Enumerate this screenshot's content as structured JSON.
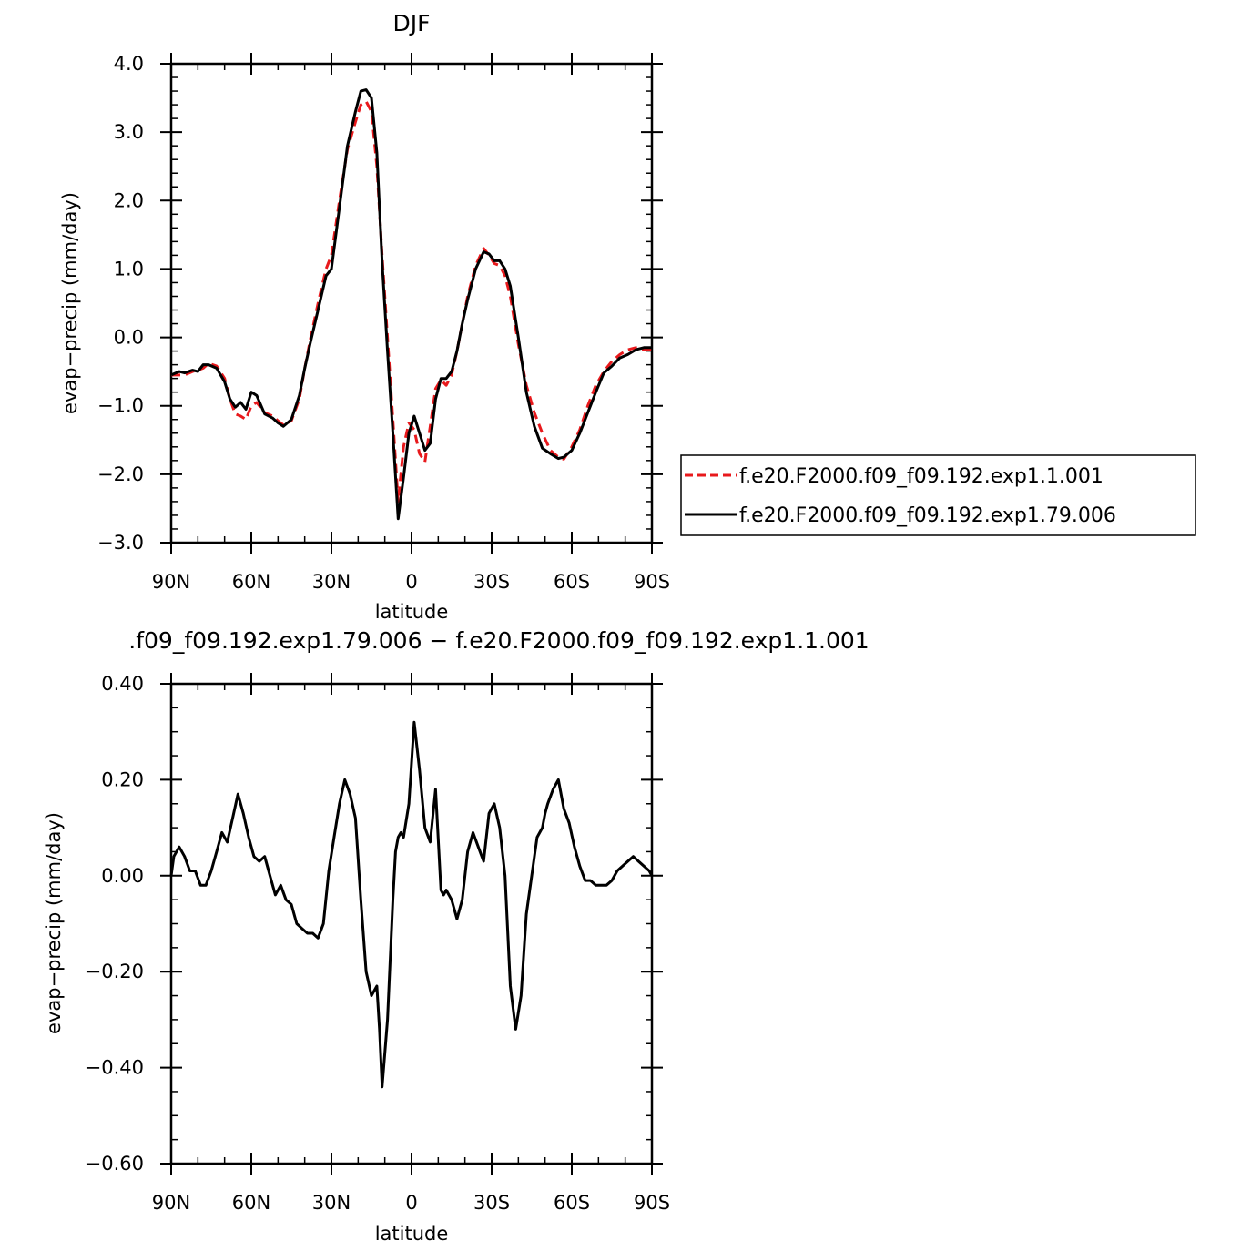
{
  "chart_data": [
    {
      "type": "line",
      "title": "DJF",
      "xlabel": "latitude",
      "ylabel": "evap−precip (mm/day)",
      "xlim": [
        90,
        -90
      ],
      "ylim": [
        -3.0,
        4.0
      ],
      "x_ticks": [
        90,
        60,
        30,
        0,
        -30,
        -60,
        -90
      ],
      "x_tick_labels": [
        "90N",
        "60N",
        "30N",
        "0",
        "30S",
        "60S",
        "90S"
      ],
      "y_ticks": [
        4.0,
        3.0,
        2.0,
        1.0,
        0.0,
        -1.0,
        -2.0,
        -3.0
      ],
      "y_tick_labels": [
        "4.0",
        "3.0",
        "2.0",
        "1.0",
        "0.0",
        "−1.0",
        "−2.0",
        "−3.0"
      ],
      "legend_position": "right",
      "series": [
        {
          "name": "f.e20.F2000.f09_f09.192.exp1.1.001",
          "color": "#e8191c",
          "style": "dashed",
          "x": [
            90,
            87,
            85,
            82,
            80,
            78,
            76,
            73,
            70,
            68,
            66,
            64,
            62,
            60,
            58,
            55,
            52,
            50,
            48,
            45,
            42,
            40,
            38,
            35,
            32,
            30,
            27,
            24,
            21,
            19,
            17,
            15,
            13,
            11,
            9,
            7,
            5,
            3,
            1,
            -1,
            -3,
            -5,
            -7,
            -9,
            -11,
            -13,
            -15,
            -17,
            -19,
            -21,
            -24,
            -27,
            -29,
            -31,
            -33,
            -35,
            -37,
            -40,
            -43,
            -46,
            -49,
            -52,
            -55,
            -57,
            -60,
            -63,
            -66,
            -69,
            -72,
            -75,
            -78,
            -81,
            -84,
            -87,
            -90
          ],
          "values": [
            -0.55,
            -0.55,
            -0.55,
            -0.5,
            -0.48,
            -0.45,
            -0.38,
            -0.42,
            -0.6,
            -0.9,
            -1.12,
            -1.15,
            -1.2,
            -1.0,
            -0.95,
            -1.1,
            -1.15,
            -1.22,
            -1.28,
            -1.22,
            -0.9,
            -0.45,
            -0.05,
            0.5,
            1.0,
            1.2,
            2.0,
            2.75,
            3.15,
            3.4,
            3.45,
            3.3,
            2.5,
            1.2,
            0.0,
            -1.2,
            -2.4,
            -1.6,
            -1.25,
            -1.35,
            -1.7,
            -1.82,
            -1.3,
            -0.75,
            -0.62,
            -0.7,
            -0.55,
            -0.2,
            0.2,
            0.6,
            1.05,
            1.3,
            1.2,
            1.08,
            1.05,
            0.9,
            0.6,
            -0.1,
            -0.7,
            -1.1,
            -1.4,
            -1.65,
            -1.75,
            -1.78,
            -1.6,
            -1.35,
            -1.0,
            -0.7,
            -0.5,
            -0.35,
            -0.25,
            -0.18,
            -0.15,
            -0.18,
            -0.18
          ]
        },
        {
          "name": "f.e20.F2000.f09_f09.192.exp1.79.006",
          "color": "#000000",
          "style": "solid",
          "x": [
            90,
            87,
            85,
            82,
            80,
            78,
            76,
            73,
            70,
            68,
            66,
            64,
            62,
            60,
            58,
            55,
            52,
            50,
            48,
            45,
            42,
            40,
            38,
            35,
            32,
            30,
            27,
            24,
            21,
            19,
            17,
            15,
            13,
            11,
            9,
            7,
            5,
            3,
            1,
            -1,
            -3,
            -5,
            -7,
            -9,
            -11,
            -13,
            -15,
            -17,
            -19,
            -21,
            -24,
            -27,
            -29,
            -31,
            -33,
            -35,
            -37,
            -40,
            -43,
            -46,
            -49,
            -52,
            -55,
            -57,
            -60,
            -63,
            -66,
            -69,
            -72,
            -75,
            -78,
            -81,
            -84,
            -87,
            -90
          ],
          "values": [
            -0.55,
            -0.5,
            -0.52,
            -0.48,
            -0.5,
            -0.4,
            -0.4,
            -0.45,
            -0.65,
            -0.9,
            -1.02,
            -0.95,
            -1.05,
            -0.8,
            -0.85,
            -1.12,
            -1.18,
            -1.25,
            -1.3,
            -1.2,
            -0.85,
            -0.45,
            -0.1,
            0.4,
            0.9,
            1.0,
            1.9,
            2.8,
            3.3,
            3.6,
            3.62,
            3.5,
            2.7,
            1.1,
            -0.2,
            -1.4,
            -2.65,
            -2.05,
            -1.4,
            -1.15,
            -1.4,
            -1.65,
            -1.55,
            -0.9,
            -0.6,
            -0.6,
            -0.5,
            -0.2,
            0.2,
            0.55,
            1.0,
            1.25,
            1.22,
            1.12,
            1.12,
            1.0,
            0.75,
            0.0,
            -0.8,
            -1.3,
            -1.62,
            -1.7,
            -1.77,
            -1.75,
            -1.65,
            -1.4,
            -1.1,
            -0.8,
            -0.52,
            -0.42,
            -0.3,
            -0.25,
            -0.18,
            -0.15,
            -0.15
          ]
        }
      ]
    },
    {
      "type": "line",
      "title": ".f09_f09.192.exp1.79.006 − f.e20.F2000.f09_f09.192.exp1.1.001",
      "xlabel": "latitude",
      "ylabel": "evap−precip (mm/day)",
      "xlim": [
        90,
        -90
      ],
      "ylim": [
        -0.6,
        0.4
      ],
      "x_ticks": [
        90,
        60,
        30,
        0,
        -30,
        -60,
        -90
      ],
      "x_tick_labels": [
        "90N",
        "60N",
        "30N",
        "0",
        "30S",
        "60S",
        "90S"
      ],
      "y_ticks": [
        0.4,
        0.2,
        0.0,
        -0.2,
        -0.4,
        -0.6
      ],
      "y_tick_labels": [
        "0.40",
        "0.20",
        "0.00",
        "−0.20",
        "−0.40",
        "−0.60"
      ],
      "series": [
        {
          "color": "#000000",
          "style": "solid",
          "x": [
            90,
            89,
            87,
            85,
            83,
            81,
            79,
            77,
            75,
            73,
            71,
            69,
            67,
            65,
            63,
            61,
            59,
            57,
            55,
            53,
            51,
            49,
            47,
            45,
            43,
            41,
            39,
            37,
            35,
            33,
            31,
            29,
            27,
            25,
            23,
            21,
            19,
            17,
            15,
            13,
            12,
            11,
            9,
            7,
            6,
            5,
            4,
            3,
            1,
            -1,
            -3,
            -5,
            -7,
            -9,
            -11,
            -12,
            -13,
            -15,
            -17,
            -19,
            -21,
            -23,
            -25,
            -27,
            -29,
            -31,
            -33,
            -35,
            -37,
            -39,
            -41,
            -43,
            -45,
            -47,
            -49,
            -50,
            -51,
            -53,
            -55,
            -57,
            -59,
            -61,
            -63,
            -65,
            -67,
            -69,
            -71,
            -73,
            -75,
            -77,
            -79,
            -81,
            -83,
            -85,
            -87,
            -89,
            -90
          ],
          "values": [
            0.0,
            0.04,
            0.06,
            0.04,
            0.01,
            0.01,
            -0.02,
            -0.02,
            0.01,
            0.05,
            0.09,
            0.07,
            0.12,
            0.17,
            0.13,
            0.08,
            0.04,
            0.03,
            0.04,
            0.0,
            -0.04,
            -0.02,
            -0.05,
            -0.06,
            -0.1,
            -0.11,
            -0.12,
            -0.12,
            -0.13,
            -0.1,
            0.01,
            0.08,
            0.15,
            0.2,
            0.17,
            0.12,
            -0.05,
            -0.2,
            -0.25,
            -0.23,
            -0.32,
            -0.44,
            -0.3,
            -0.05,
            0.05,
            0.08,
            0.09,
            0.08,
            0.15,
            0.32,
            0.22,
            0.1,
            0.07,
            0.18,
            -0.03,
            -0.04,
            -0.03,
            -0.05,
            -0.09,
            -0.05,
            0.05,
            0.09,
            0.06,
            0.03,
            0.13,
            0.15,
            0.1,
            0.0,
            -0.23,
            -0.32,
            -0.25,
            -0.08,
            0.0,
            0.08,
            0.1,
            0.13,
            0.15,
            0.18,
            0.2,
            0.14,
            0.11,
            0.06,
            0.02,
            -0.01,
            -0.01,
            -0.02,
            -0.02,
            -0.02,
            -0.01,
            0.01,
            0.02,
            0.03,
            0.04,
            0.03,
            0.02,
            0.01,
            0.0
          ]
        }
      ]
    }
  ]
}
